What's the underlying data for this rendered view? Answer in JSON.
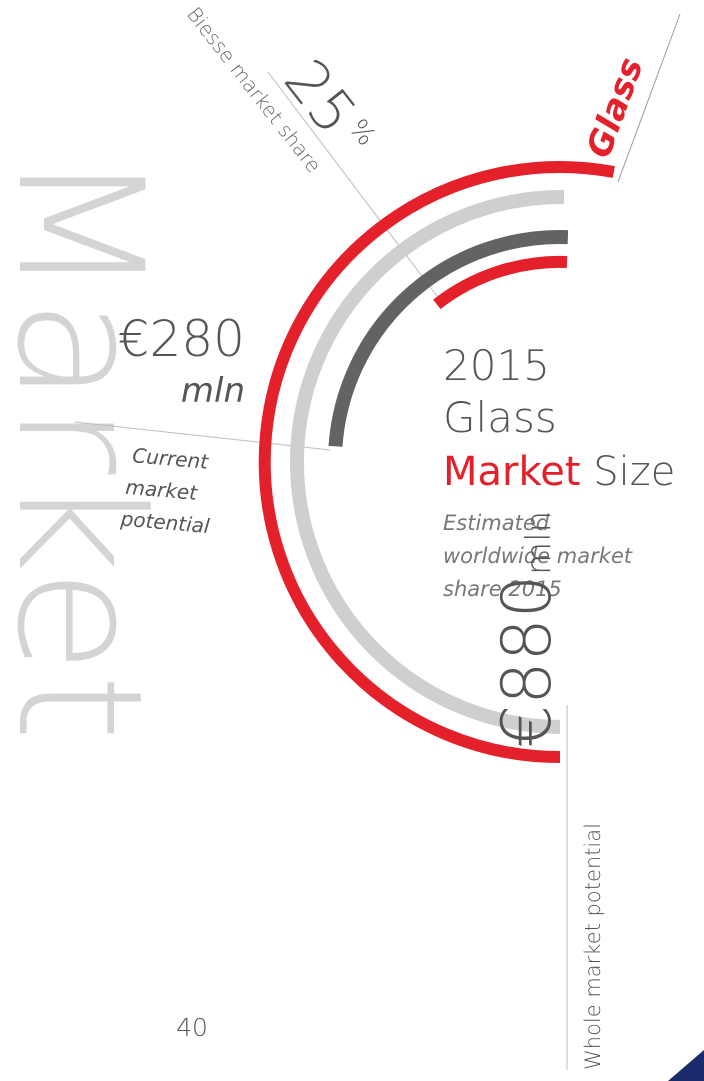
{
  "watermark": "Market",
  "sector": "Glass",
  "share": {
    "value": "25",
    "unit": "%",
    "label": "Biesse market share"
  },
  "current": {
    "value": "€280",
    "unit": "mln",
    "label_lines": [
      "Current",
      "market",
      "potential"
    ]
  },
  "heading": {
    "year": "2015",
    "line2": "Glass",
    "highlight": "Market",
    "rest": "Size"
  },
  "subtitle_lines": [
    "Estimated",
    "worldwide market",
    "share 2015"
  ],
  "whole": {
    "value": "€880",
    "unit": "mln",
    "label": "Whole market potential"
  },
  "page_number": "40"
}
